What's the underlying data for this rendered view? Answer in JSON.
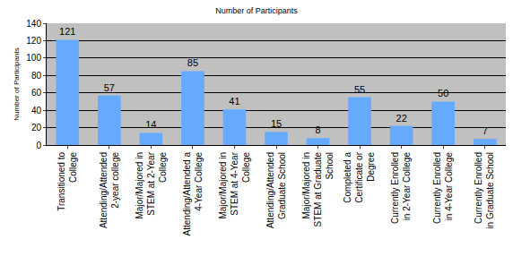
{
  "chart_data": {
    "type": "bar",
    "title": "Number of Participants",
    "y_label": "Number of Participants",
    "categories": [
      "Transitioned to College",
      "Attending/Attended 2-year college",
      "Major/Majored in STEM at 2-Year College",
      "Attending/Attended a 4-Year College",
      "Major/Majored in STEM at 4-Year College",
      "Attending/Attended Graduate School",
      "Major/Majored in STEM at Graduate School",
      "Completed a Certificate or Degree",
      "Currently Enrolled in 2-Year College",
      "Currently Enrolled in 4-Year College",
      "Currently Enrolled in Graduate School"
    ],
    "values": [
      121,
      57,
      14,
      85,
      41,
      15,
      8,
      55,
      22,
      50,
      7
    ],
    "color": "#66aaff",
    "ylim": [
      0,
      140
    ],
    "yticks": [
      0,
      20,
      40,
      60,
      80,
      100,
      120,
      140
    ],
    "grid": true,
    "data_labels": true
  }
}
